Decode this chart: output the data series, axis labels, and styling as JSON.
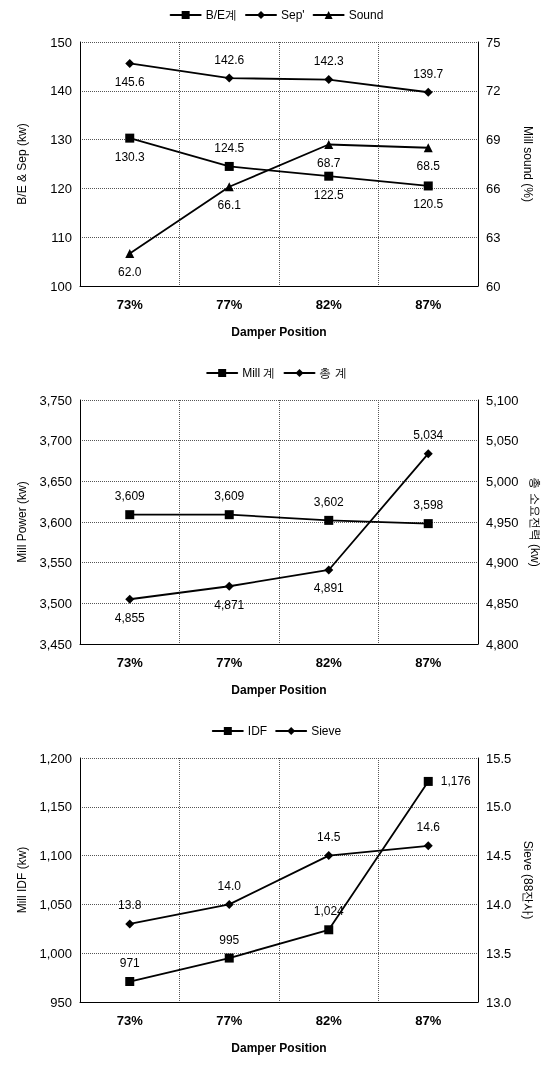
{
  "chart_data": [
    {
      "type": "line",
      "categories": [
        "73%",
        "77%",
        "82%",
        "87%"
      ],
      "xlabel": "Damper Position",
      "ylabel": "B/E & Sep (kw)",
      "y2label": "Mill sound (%)",
      "ylim": [
        100,
        150
      ],
      "yticks": [
        100,
        110,
        120,
        130,
        140,
        150
      ],
      "y2lim": [
        60,
        75
      ],
      "y2ticks": [
        60,
        63,
        66,
        69,
        72,
        75
      ],
      "grid": true,
      "legend": "top",
      "line_style": "solid",
      "series": [
        {
          "name": "B/E계",
          "color": "#000000",
          "marker": "square",
          "values": [
            130.3,
            124.5,
            122.5,
            120.5
          ],
          "value_labels": [
            "130.3",
            "124.5",
            "122.5",
            "120.5"
          ]
        },
        {
          "name": "Sep'",
          "color": "#000000",
          "marker": "diamond",
          "values": [
            145.6,
            142.6,
            142.3,
            139.7
          ],
          "value_labels": [
            "145.6",
            "142.6",
            "142.3",
            "139.7"
          ]
        },
        {
          "name": "Sound",
          "color": "#000000",
          "marker": "triangle",
          "axis": "y2",
          "values": [
            62.0,
            66.1,
            68.7,
            68.5
          ],
          "value_labels": [
            "62.0",
            "66.1",
            "68.7",
            "68.5"
          ]
        }
      ]
    },
    {
      "type": "line",
      "categories": [
        "73%",
        "77%",
        "82%",
        "87%"
      ],
      "xlabel": "Damper Position",
      "ylabel": "Mill Power (kw)",
      "y2label": "총 소요전력 (kw)",
      "ylim": [
        3450,
        3750
      ],
      "yticks": [
        {
          "value": 3450,
          "label": "3,450"
        },
        {
          "value": 3500,
          "label": "3,500"
        },
        {
          "value": 3550,
          "label": "3,550"
        },
        {
          "value": 3600,
          "label": "3,600"
        },
        {
          "value": 3650,
          "label": "3,650"
        },
        {
          "value": 3700,
          "label": "3,700"
        },
        {
          "value": 3750,
          "label": "3,750"
        }
      ],
      "y2lim": [
        4800,
        5100
      ],
      "y2ticks": [
        {
          "value": 4800,
          "label": "4,800"
        },
        {
          "value": 4850,
          "label": "4,850"
        },
        {
          "value": 4900,
          "label": "4,900"
        },
        {
          "value": 4950,
          "label": "4,950"
        },
        {
          "value": 5000,
          "label": "5,000"
        },
        {
          "value": 5050,
          "label": "5,050"
        },
        {
          "value": 5100,
          "label": "5,100"
        }
      ],
      "grid": true,
      "legend": "top",
      "line_style": "solid",
      "series": [
        {
          "name": "Mill 계",
          "color": "#000000",
          "marker": "square",
          "values": [
            3609,
            3609,
            3602,
            3598
          ],
          "value_labels": [
            "3,609",
            "3,609",
            "3,602",
            "3,598"
          ]
        },
        {
          "name": "총 계",
          "color": "#000000",
          "marker": "diamond",
          "axis": "y2",
          "values": [
            4855,
            4871,
            4891,
            5034
          ],
          "value_labels": [
            "4,855",
            "4,871",
            "4,891",
            "5,034"
          ]
        }
      ]
    },
    {
      "type": "line",
      "categories": [
        "73%",
        "77%",
        "82%",
        "87%"
      ],
      "xlabel": "Damper Position",
      "ylabel": "Mill IDF (kw)",
      "y2label": "Sieve (88잔사)",
      "ylim": [
        950,
        1200
      ],
      "yticks": [
        950,
        {
          "value": 1000,
          "label": "1,000"
        },
        {
          "value": 1050,
          "label": "1,050"
        },
        {
          "value": 1100,
          "label": "1,100"
        },
        {
          "value": 1150,
          "label": "1,150"
        },
        {
          "value": 1200,
          "label": "1,200"
        }
      ],
      "y2lim": [
        13.0,
        15.5
      ],
      "y2ticks": [
        {
          "value": 13.0,
          "label": "13.0"
        },
        {
          "value": 13.5,
          "label": "13.5"
        },
        {
          "value": 14.0,
          "label": "14.0"
        },
        {
          "value": 14.5,
          "label": "14.5"
        },
        {
          "value": 15.0,
          "label": "15.0"
        },
        {
          "value": 15.5,
          "label": "15.5"
        }
      ],
      "grid": true,
      "legend": "top",
      "line_style": "solid",
      "series": [
        {
          "name": "IDF",
          "color": "#000000",
          "marker": "square",
          "values": [
            971,
            995,
            1024,
            1176
          ],
          "value_labels": [
            "971",
            "995",
            "1,024",
            "1,176"
          ]
        },
        {
          "name": "Sieve",
          "color": "#000000",
          "marker": "diamond",
          "axis": "y2",
          "values": [
            13.8,
            14.0,
            14.5,
            14.6
          ],
          "value_labels": [
            "13.8",
            "14.0",
            "14.5",
            "14.6"
          ]
        }
      ]
    }
  ]
}
